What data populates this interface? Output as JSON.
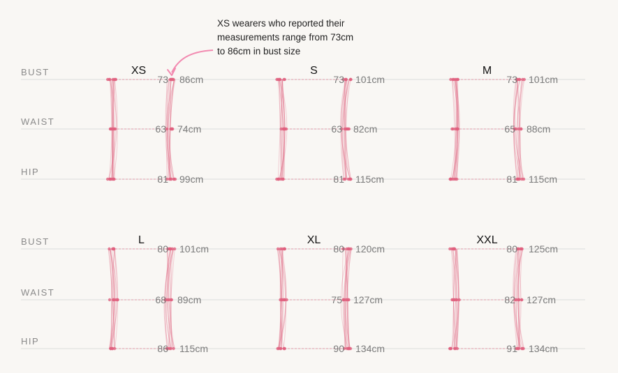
{
  "chart_data": {
    "type": "range-dots",
    "title": "",
    "annotation": {
      "lines": [
        "XS wearers who reported their",
        "measurements range from 73cm",
        "to 86cm in bust size"
      ],
      "target_size": "XS",
      "target_measure": "BUST"
    },
    "rows": [
      "BUST",
      "WAIST",
      "HIP"
    ],
    "unit": "cm",
    "accent_color": "#e0607e",
    "annotation_arrow_color": "#f28ab0",
    "sizes": [
      {
        "name": "XS",
        "bust": [
          73,
          86
        ],
        "waist": [
          63,
          74
        ],
        "hip": [
          81,
          99
        ]
      },
      {
        "name": "S",
        "bust": [
          73,
          101
        ],
        "waist": [
          63,
          82
        ],
        "hip": [
          81,
          115
        ]
      },
      {
        "name": "M",
        "bust": [
          73,
          101
        ],
        "waist": [
          65,
          88
        ],
        "hip": [
          81,
          115
        ]
      },
      {
        "name": "L",
        "bust": [
          80,
          101
        ],
        "waist": [
          68,
          89
        ],
        "hip": [
          86,
          115
        ]
      },
      {
        "name": "XL",
        "bust": [
          80,
          120
        ],
        "waist": [
          75,
          127
        ],
        "hip": [
          90,
          134
        ]
      },
      {
        "name": "XXL",
        "bust": [
          80,
          125
        ],
        "waist": [
          82,
          127
        ],
        "hip": [
          91,
          134
        ]
      }
    ]
  }
}
